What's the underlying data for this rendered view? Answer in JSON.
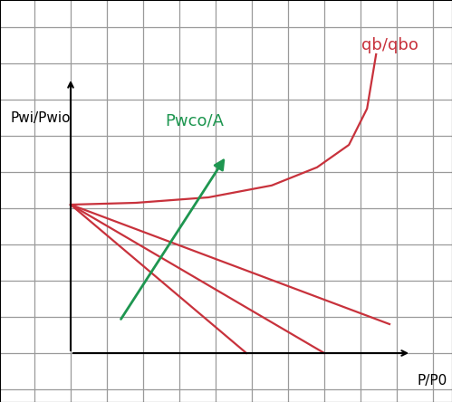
{
  "chart_data": {
    "type": "line",
    "xlabel": "P/P0",
    "ylabel": "Pwi/Pwio",
    "annotations": [
      {
        "text": "qb/qbo",
        "color": "#c8323c"
      },
      {
        "text": "Pwco/A",
        "color": "#1e9650"
      }
    ],
    "series": [
      {
        "color": "#c8323c",
        "x": [
          0,
          4.85
        ],
        "values": [
          4.1,
          0
        ]
      },
      {
        "color": "#c8323c",
        "x": [
          0,
          7.0
        ],
        "values": [
          4.1,
          0
        ]
      },
      {
        "color": "#c8323c",
        "x": [
          0,
          8.8
        ],
        "values": [
          4.1,
          0.8
        ]
      },
      {
        "color": "#c8323c",
        "x": [
          0,
          1.8,
          3.8,
          5.55,
          6.8,
          7.68,
          8.18,
          8.43
        ],
        "values": [
          4.1,
          4.15,
          4.3,
          4.63,
          5.13,
          5.75,
          6.75,
          8.25
        ]
      },
      {
        "type": "arrow",
        "color": "#1e9650",
        "x": [
          1.35,
          4.3
        ],
        "values": [
          0.88,
          5.45
        ]
      }
    ],
    "xlim": [
      -1.95,
      10.525
    ],
    "ylim": [
      -1.35,
      9.75
    ],
    "xticks": [
      -1,
      0,
      1,
      2,
      3,
      4,
      5,
      6,
      7,
      8,
      9,
      10
    ],
    "yticks": [
      -1,
      0,
      1,
      2,
      3,
      4,
      5,
      6,
      7,
      8,
      9
    ],
    "grid": true,
    "tick_labels": false
  }
}
